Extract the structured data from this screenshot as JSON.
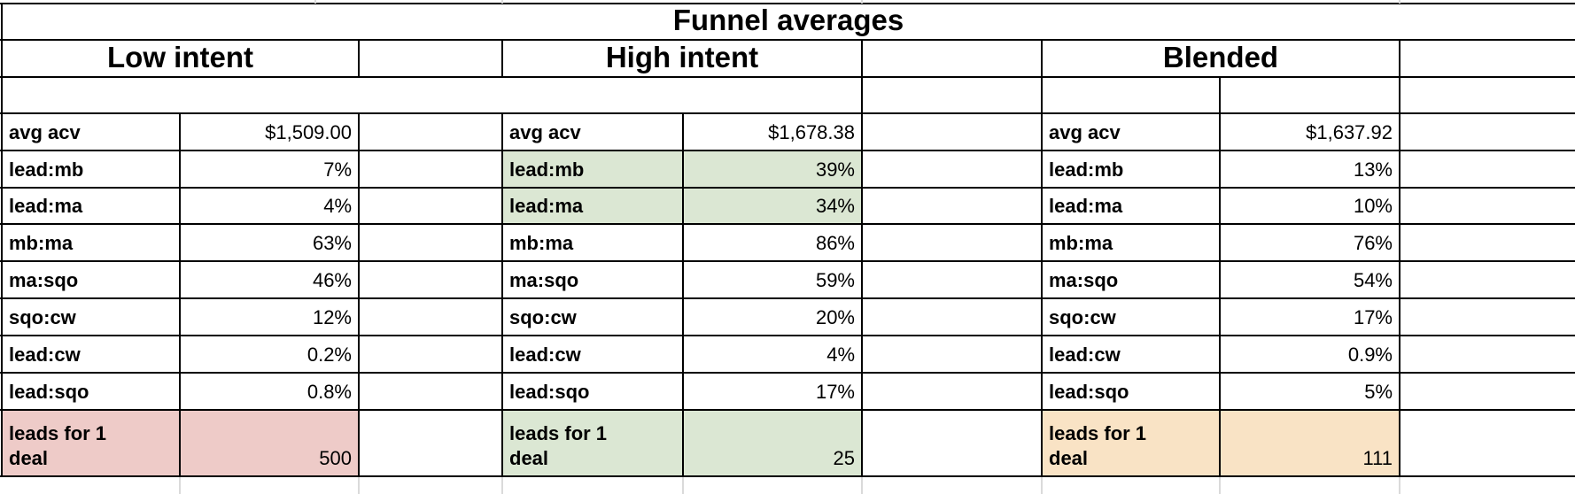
{
  "title": "Funnel averages",
  "metric_labels": [
    "avg acv",
    "lead:mb",
    "lead:ma",
    "mb:ma",
    "ma:sqo",
    "sqo:cw",
    "lead:cw",
    "lead:sqo",
    "leads for 1 deal"
  ],
  "sections": [
    {
      "id": "low-intent",
      "title": "Low intent",
      "highlight_color": "#eecbc8",
      "rows": [
        {
          "label": "avg acv",
          "value": "$1,509.00",
          "highlight": false
        },
        {
          "label": "lead:mb",
          "value": "7%",
          "highlight": false
        },
        {
          "label": "lead:ma",
          "value": "4%",
          "highlight": false
        },
        {
          "label": "mb:ma",
          "value": "63%",
          "highlight": false
        },
        {
          "label": "ma:sqo",
          "value": "46%",
          "highlight": false
        },
        {
          "label": "sqo:cw",
          "value": "12%",
          "highlight": false
        },
        {
          "label": "lead:cw",
          "value": "0.2%",
          "highlight": false
        },
        {
          "label": "lead:sqo",
          "value": "0.8%",
          "highlight": false
        },
        {
          "label": "leads for 1 deal",
          "value": "500",
          "highlight": true
        }
      ]
    },
    {
      "id": "high-intent",
      "title": "High intent",
      "highlight_color": "#dbe7d3",
      "rows": [
        {
          "label": "avg acv",
          "value": "$1,678.38",
          "highlight": false
        },
        {
          "label": "lead:mb",
          "value": "39%",
          "highlight": true
        },
        {
          "label": "lead:ma",
          "value": "34%",
          "highlight": true
        },
        {
          "label": "mb:ma",
          "value": "86%",
          "highlight": false
        },
        {
          "label": "ma:sqo",
          "value": "59%",
          "highlight": false
        },
        {
          "label": "sqo:cw",
          "value": "20%",
          "highlight": false
        },
        {
          "label": "lead:cw",
          "value": "4%",
          "highlight": false
        },
        {
          "label": "lead:sqo",
          "value": "17%",
          "highlight": false
        },
        {
          "label": "leads for 1 deal",
          "value": "25",
          "highlight": true
        }
      ]
    },
    {
      "id": "blended",
      "title": "Blended",
      "highlight_color": "#f9e3c5",
      "rows": [
        {
          "label": "avg acv",
          "value": "$1,637.92",
          "highlight": false
        },
        {
          "label": "lead:mb",
          "value": "13%",
          "highlight": false
        },
        {
          "label": "lead:ma",
          "value": "10%",
          "highlight": false
        },
        {
          "label": "mb:ma",
          "value": "76%",
          "highlight": false
        },
        {
          "label": "ma:sqo",
          "value": "54%",
          "highlight": false
        },
        {
          "label": "sqo:cw",
          "value": "17%",
          "highlight": false
        },
        {
          "label": "lead:cw",
          "value": "0.9%",
          "highlight": false
        },
        {
          "label": "lead:sqo",
          "value": "5%",
          "highlight": false
        },
        {
          "label": "leads for 1 deal",
          "value": "111",
          "highlight": true
        }
      ]
    }
  ],
  "grid_color": "#000000",
  "faint_gridline_color": "#dadada"
}
